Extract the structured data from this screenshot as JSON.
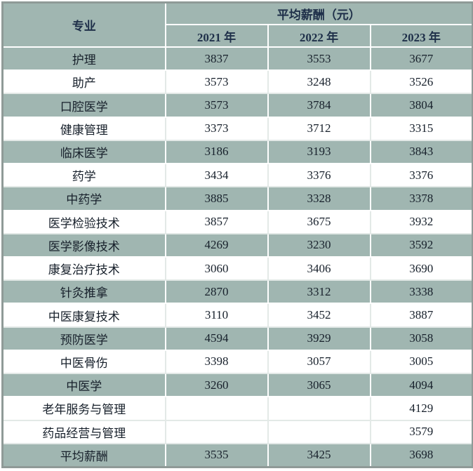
{
  "chart_data": {
    "type": "table",
    "title": "平均薪酬（元）",
    "row_header_label": "专业",
    "columns": [
      "2021 年",
      "2022 年",
      "2023 年"
    ],
    "rows": [
      {
        "label": "护理",
        "values": [
          3837,
          3553,
          3677
        ]
      },
      {
        "label": "助产",
        "values": [
          3573,
          3248,
          3526
        ]
      },
      {
        "label": "口腔医学",
        "values": [
          3573,
          3784,
          3804
        ]
      },
      {
        "label": "健康管理",
        "values": [
          3373,
          3712,
          3315
        ]
      },
      {
        "label": "临床医学",
        "values": [
          3186,
          3193,
          3843
        ]
      },
      {
        "label": "药学",
        "values": [
          3434,
          3376,
          3376
        ]
      },
      {
        "label": "中药学",
        "values": [
          3885,
          3328,
          3378
        ]
      },
      {
        "label": "医学检验技术",
        "values": [
          3857,
          3675,
          3932
        ]
      },
      {
        "label": "医学影像技术",
        "values": [
          4269,
          3230,
          3592
        ]
      },
      {
        "label": "康复治疗技术",
        "values": [
          3060,
          3406,
          3690
        ]
      },
      {
        "label": "针灸推拿",
        "values": [
          2870,
          3312,
          3338
        ]
      },
      {
        "label": "中医康复技术",
        "values": [
          3110,
          3452,
          3887
        ]
      },
      {
        "label": "预防医学",
        "values": [
          4594,
          3929,
          3058
        ]
      },
      {
        "label": "中医骨伤",
        "values": [
          3398,
          3057,
          3005
        ]
      },
      {
        "label": "中医学",
        "values": [
          3260,
          3065,
          4094
        ]
      },
      {
        "label": "老年服务与管理",
        "values": [
          null,
          null,
          4129
        ]
      },
      {
        "label": "药品经营与管理",
        "values": [
          null,
          null,
          3579
        ]
      },
      {
        "label": "平均薪酬",
        "values": [
          3535,
          3425,
          3698
        ]
      }
    ]
  },
  "colors": {
    "stripe_bg": "#a0b6b1",
    "plain_bg": "#ffffff",
    "frame": "#8f9a97",
    "header_text": "#1e2f49",
    "body_text": "#17202b"
  }
}
